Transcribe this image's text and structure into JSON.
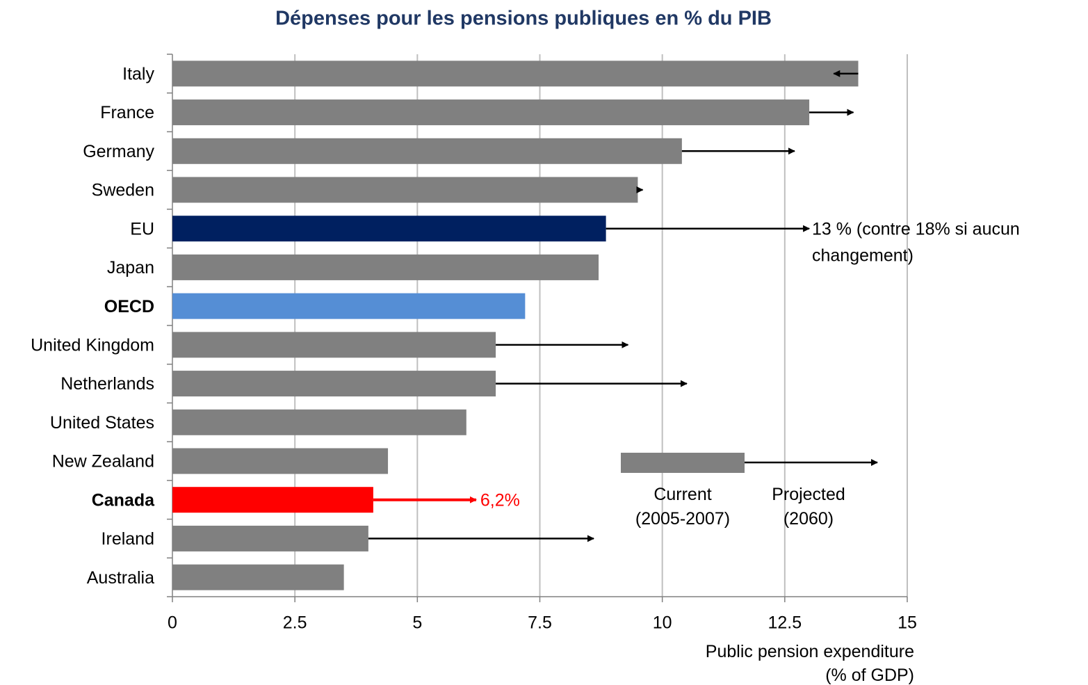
{
  "chart_data": {
    "type": "bar",
    "orientation": "horizontal",
    "title": "Dépenses pour les pensions publiques en % du PIB",
    "x_label": "Public pension expenditure\n(% of GDP)",
    "categories": [
      "Italy",
      "France",
      "Germany",
      "Sweden",
      "EU",
      "Japan",
      "OECD",
      "United Kingdom",
      "Netherlands",
      "United States",
      "New Zealand",
      "Canada",
      "Ireland",
      "Australia"
    ],
    "bold_categories": [
      6,
      11
    ],
    "series": [
      {
        "name": "Current\n(2005-2007)",
        "color": "#808080",
        "colors": [
          "#808080",
          "#808080",
          "#808080",
          "#808080",
          "#002060",
          "#808080",
          "#558ed5",
          "#808080",
          "#808080",
          "#808080",
          "#808080",
          "#ff0000",
          "#808080",
          "#808080"
        ],
        "values": [
          14.0,
          13.0,
          10.4,
          9.5,
          8.85,
          8.7,
          7.2,
          6.6,
          6.6,
          6.0,
          4.4,
          4.1,
          4.0,
          3.5
        ]
      },
      {
        "name": "Projected\n(2060)",
        "color": "#000000",
        "colors": [
          "#000000",
          "#000000",
          "#000000",
          "#000000",
          "#000000",
          "#000000",
          "#000000",
          "#000000",
          "#000000",
          "#000000",
          "#000000",
          "#ff0000",
          "#000000",
          "#000000"
        ],
        "values": [
          13.5,
          13.9,
          12.7,
          9.6,
          13,
          null,
          null,
          9.3,
          10.5,
          null,
          null,
          6.2,
          8.6,
          null
        ],
        "value_labels": [
          null,
          null,
          null,
          null,
          null,
          null,
          null,
          null,
          null,
          null,
          null,
          "6,2%",
          null,
          null
        ]
      }
    ],
    "annotations": [
      "13 % (contre 18% si aucun\nchangement)"
    ],
    "xlim": [
      0,
      15
    ],
    "xticks": [
      0,
      2.5,
      5,
      7.5,
      10,
      12.5,
      15
    ],
    "grid": true
  }
}
